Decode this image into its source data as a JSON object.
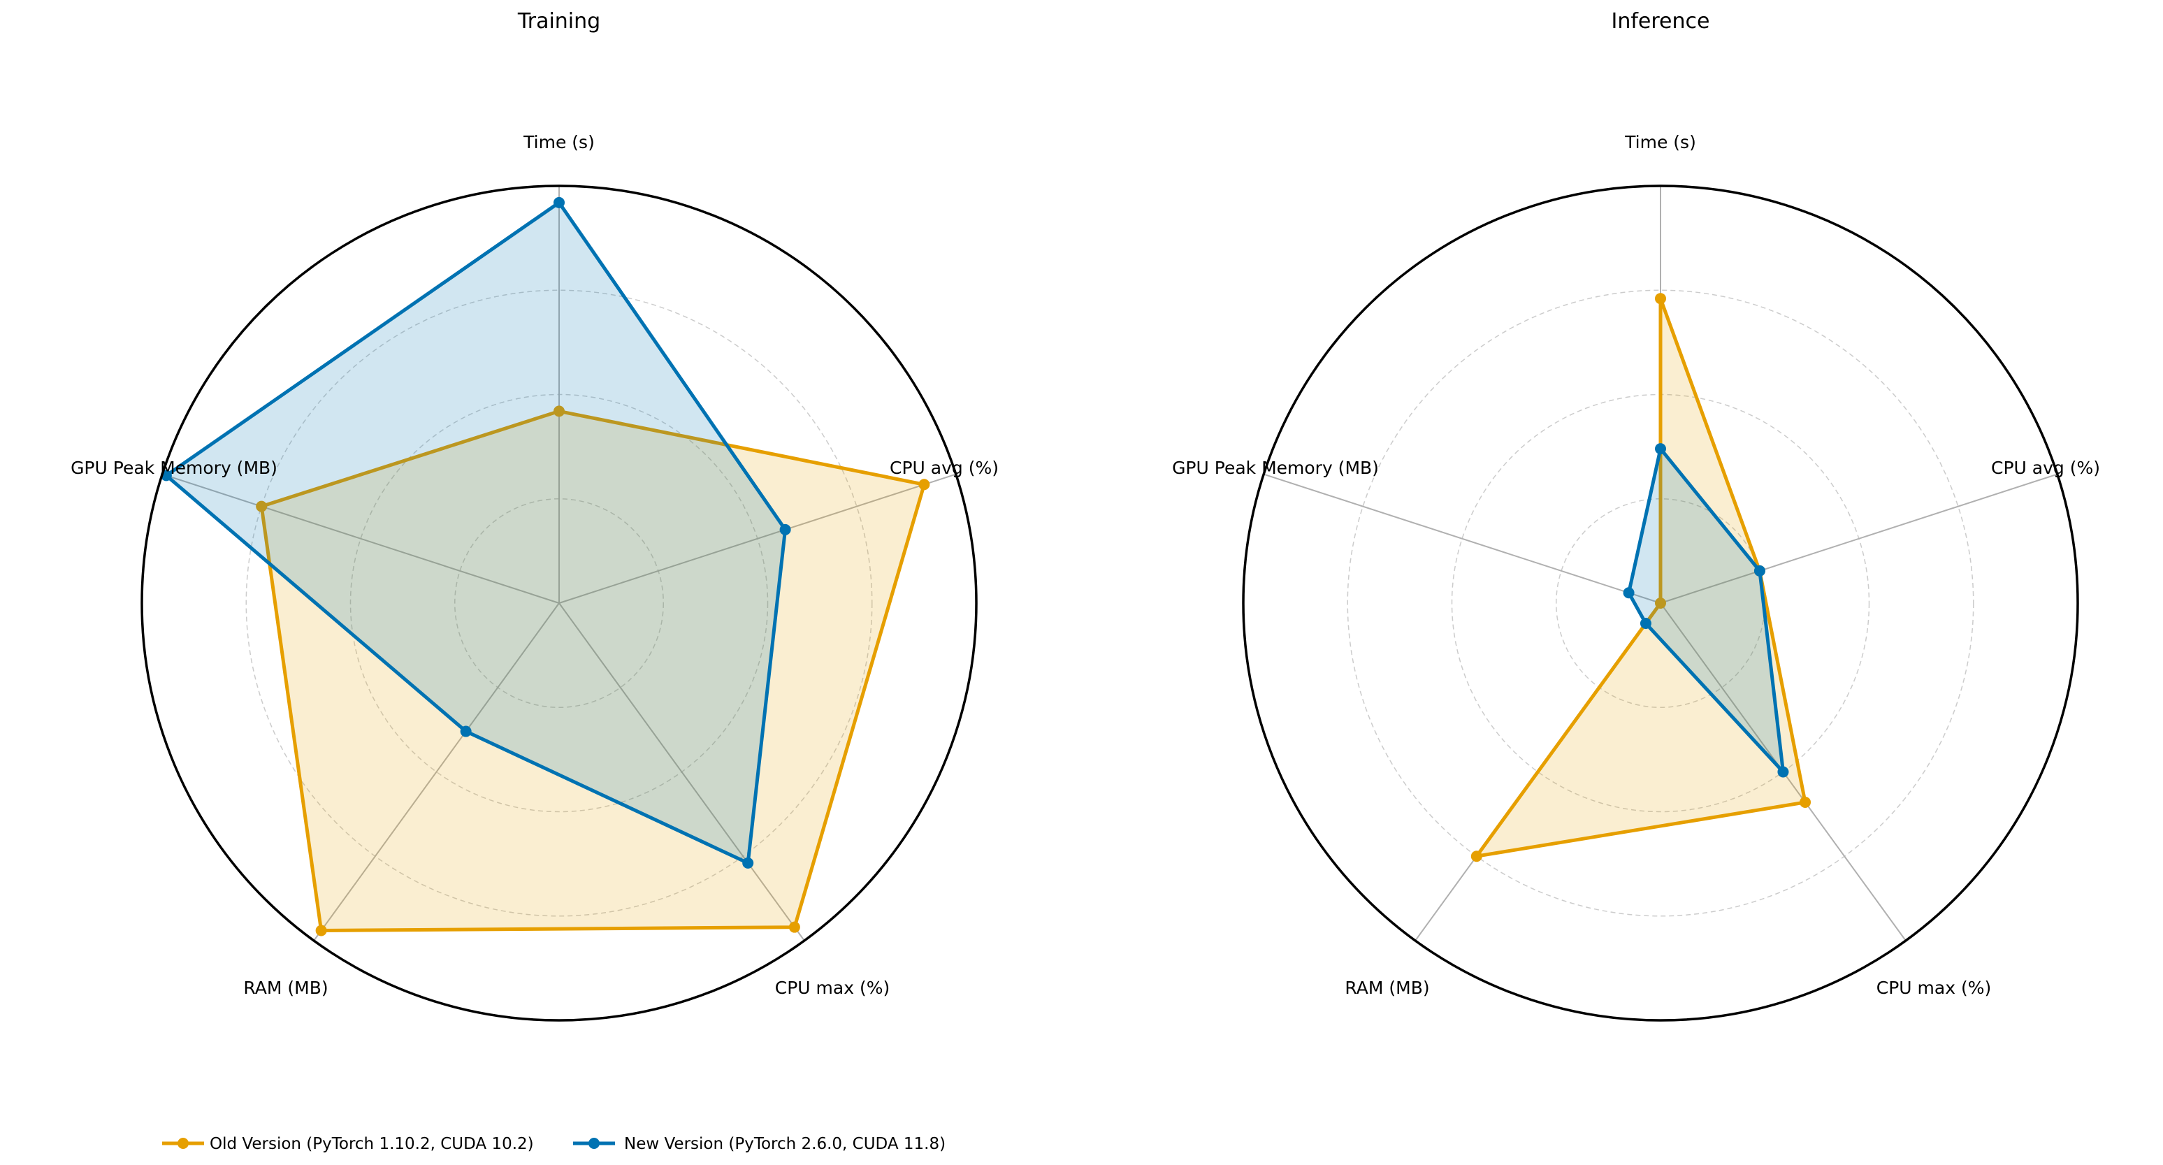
{
  "chart_data": [
    {
      "type": "radar",
      "title": "Training",
      "axes": [
        "Time (s)",
        "CPU avg (%)",
        "CPU max (%)",
        "RAM (MB)",
        "GPU Peak Memory (MB)"
      ],
      "rmax": 1.0,
      "grid_levels": [
        0.25,
        0.5,
        0.75
      ],
      "grid": true,
      "series": [
        {
          "name": "Old Version (PyTorch 1.10.2, CUDA 10.2)",
          "values": [
            0.46,
            0.92,
            0.96,
            0.97,
            0.75
          ]
        },
        {
          "name": "New Version (PyTorch 2.6.0, CUDA 11.8)",
          "values": [
            0.96,
            0.57,
            0.77,
            0.38,
            0.99
          ]
        }
      ]
    },
    {
      "type": "radar",
      "title": "Inference",
      "axes": [
        "Time (s)",
        "CPU avg (%)",
        "CPU max (%)",
        "RAM (MB)",
        "GPU Peak Memory (MB)"
      ],
      "rmax": 1.0,
      "grid_levels": [
        0.25,
        0.5,
        0.75
      ],
      "grid": true,
      "series": [
        {
          "name": "Old Version (PyTorch 1.10.2, CUDA 10.2)",
          "values": [
            0.73,
            0.25,
            0.59,
            0.75,
            0.0
          ]
        },
        {
          "name": "New Version (PyTorch 2.6.0, CUDA 11.8)",
          "values": [
            0.37,
            0.25,
            0.5,
            0.06,
            0.08
          ]
        }
      ]
    }
  ],
  "legend": {
    "position": "bottom-left",
    "entries": [
      {
        "label": "Old Version (PyTorch 1.10.2, CUDA 10.2)",
        "color": "#E69F00"
      },
      {
        "label": "New Version (PyTorch 2.6.0, CUDA 11.8)",
        "color": "#0072B2"
      }
    ]
  },
  "colors": {
    "old": "#E69F00",
    "new": "#0072B2",
    "outer_ring": "#000000",
    "spoke": "#b0b0b0",
    "grid": "#cccccc"
  }
}
